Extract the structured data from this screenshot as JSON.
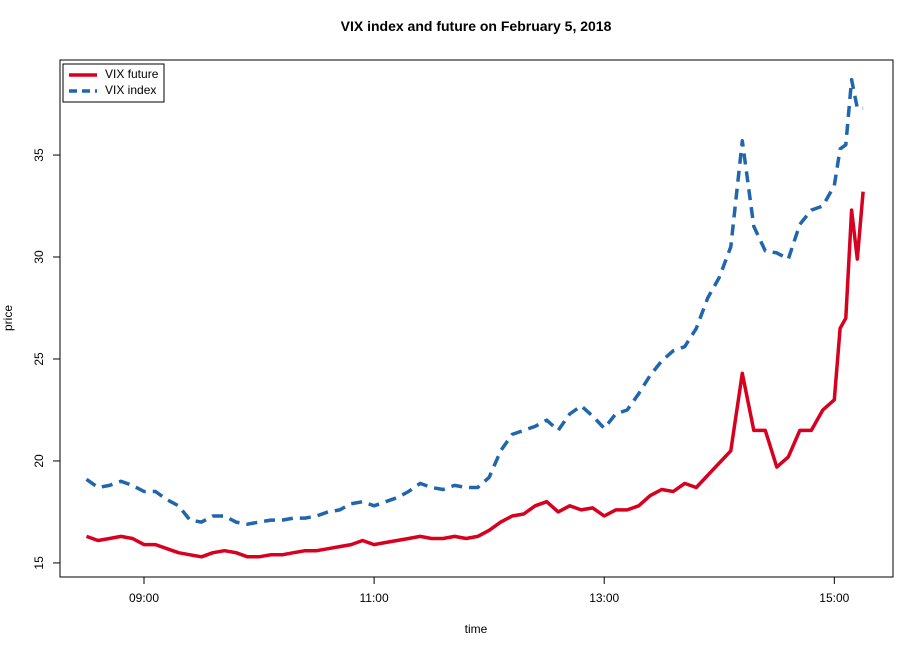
{
  "chart_data": {
    "type": "line",
    "title": "VIX index and future on February 5, 2018",
    "x_label": "time",
    "y_label": "price",
    "xlim": [
      8.27,
      15.51
    ],
    "xticks": [
      {
        "value": 9,
        "label": "09:00"
      },
      {
        "value": 11,
        "label": "11:00"
      },
      {
        "value": 13,
        "label": "13:00"
      },
      {
        "value": 15,
        "label": "15:00"
      }
    ],
    "ylim": [
      14.31,
      39.66
    ],
    "yticks": [
      15,
      20,
      25,
      30,
      35
    ],
    "legend": "topleft",
    "x": [
      8.5,
      8.6,
      8.7,
      8.8,
      8.9,
      9.0,
      9.1,
      9.2,
      9.3,
      9.4,
      9.5,
      9.6,
      9.7,
      9.8,
      9.9,
      10.0,
      10.1,
      10.2,
      10.3,
      10.4,
      10.5,
      10.6,
      10.7,
      10.8,
      10.9,
      11.0,
      11.1,
      11.2,
      11.3,
      11.4,
      11.5,
      11.6,
      11.7,
      11.8,
      11.9,
      12.0,
      12.1,
      12.2,
      12.3,
      12.4,
      12.5,
      12.6,
      12.7,
      12.8,
      12.9,
      13.0,
      13.1,
      13.2,
      13.3,
      13.4,
      13.5,
      13.6,
      13.7,
      13.8,
      13.9,
      14.0,
      14.1,
      14.2,
      14.3,
      14.4,
      14.5,
      14.6,
      14.7,
      14.8,
      14.9,
      15.0,
      15.05,
      15.1,
      15.15,
      15.2,
      15.25
    ],
    "series": [
      {
        "name": "VIX future",
        "color": "#d7001f",
        "dash": "solid",
        "values": [
          16.3,
          16.1,
          16.2,
          16.3,
          16.2,
          15.9,
          15.9,
          15.7,
          15.5,
          15.4,
          15.3,
          15.5,
          15.6,
          15.5,
          15.3,
          15.3,
          15.4,
          15.4,
          15.5,
          15.6,
          15.6,
          15.7,
          15.8,
          15.9,
          16.1,
          15.9,
          16.0,
          16.1,
          16.2,
          16.3,
          16.2,
          16.2,
          16.3,
          16.2,
          16.3,
          16.6,
          17.0,
          17.3,
          17.4,
          17.8,
          18.0,
          17.5,
          17.8,
          17.6,
          17.7,
          17.3,
          17.6,
          17.6,
          17.8,
          18.3,
          18.6,
          18.5,
          18.9,
          18.7,
          19.3,
          19.9,
          20.5,
          24.3,
          21.5,
          21.5,
          19.7,
          20.2,
          21.5,
          21.5,
          22.5,
          23.0,
          26.5,
          27.0,
          32.3,
          29.9,
          33.2
        ]
      },
      {
        "name": "VIX index",
        "color": "#2166ac",
        "dash": "dashed",
        "values": [
          19.1,
          18.7,
          18.8,
          19.0,
          18.8,
          18.5,
          18.5,
          18.1,
          17.8,
          17.1,
          17.0,
          17.3,
          17.3,
          17.0,
          16.9,
          17.0,
          17.1,
          17.1,
          17.2,
          17.2,
          17.3,
          17.5,
          17.6,
          17.9,
          18.0,
          17.8,
          18.0,
          18.2,
          18.5,
          18.9,
          18.7,
          18.6,
          18.8,
          18.7,
          18.7,
          19.2,
          20.5,
          21.3,
          21.5,
          21.7,
          22.0,
          21.5,
          22.3,
          22.7,
          22.2,
          21.6,
          22.3,
          22.5,
          23.3,
          24.2,
          24.9,
          25.4,
          25.6,
          26.5,
          28.0,
          29.0,
          30.5,
          35.7,
          31.5,
          30.3,
          30.2,
          29.9,
          31.6,
          32.3,
          32.5,
          33.5,
          35.3,
          35.5,
          38.7,
          37.3,
          37.3
        ]
      }
    ]
  }
}
